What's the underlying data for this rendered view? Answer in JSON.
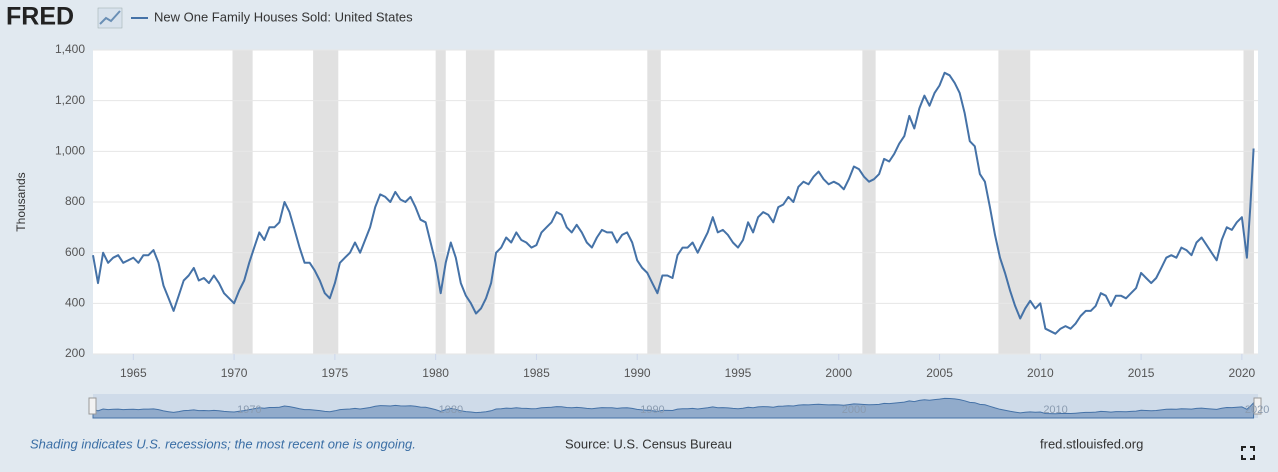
{
  "logo": "FRED",
  "chart_data": {
    "type": "line",
    "y_label": "Thousands",
    "grid": true,
    "xlim": [
      1963,
      2020.8
    ],
    "xticks": [
      1965,
      1970,
      1975,
      1980,
      1985,
      1990,
      1995,
      2000,
      2005,
      2010,
      2015,
      2020
    ],
    "ylim": [
      200,
      1400
    ],
    "yticks": [
      200,
      400,
      600,
      800,
      {
        "value": 1000,
        "label": "1,000"
      },
      {
        "value": 1200,
        "label": "1,200"
      },
      {
        "value": 1400,
        "label": "1,400"
      }
    ],
    "recessions": [
      [
        1969.92,
        1970.92
      ],
      [
        1973.92,
        1975.17
      ],
      [
        1980.0,
        1980.5
      ],
      [
        1981.5,
        1982.92
      ],
      [
        1990.5,
        1991.17
      ],
      [
        2001.17,
        2001.83
      ],
      [
        2007.92,
        2009.5
      ],
      [
        2020.08,
        2020.6
      ]
    ],
    "navigator_xticks": [
      1970,
      1980,
      1990,
      2000,
      2010,
      2020
    ],
    "x": [
      1963,
      1963.25,
      1963.5,
      1963.75,
      1964,
      1964.25,
      1964.5,
      1964.75,
      1965,
      1965.25,
      1965.5,
      1965.75,
      1966,
      1966.25,
      1966.5,
      1966.75,
      1967,
      1967.25,
      1967.5,
      1967.75,
      1968,
      1968.25,
      1968.5,
      1968.75,
      1969,
      1969.25,
      1969.5,
      1969.75,
      1970,
      1970.25,
      1970.5,
      1970.75,
      1971,
      1971.25,
      1971.5,
      1971.75,
      1972,
      1972.25,
      1972.5,
      1972.75,
      1973,
      1973.25,
      1973.5,
      1973.75,
      1974,
      1974.25,
      1974.5,
      1974.75,
      1975,
      1975.25,
      1975.5,
      1975.75,
      1976,
      1976.25,
      1976.5,
      1976.75,
      1977,
      1977.25,
      1977.5,
      1977.75,
      1978,
      1978.25,
      1978.5,
      1978.75,
      1979,
      1979.25,
      1979.5,
      1979.75,
      1980,
      1980.25,
      1980.5,
      1980.75,
      1981,
      1981.25,
      1981.5,
      1981.75,
      1982,
      1982.25,
      1982.5,
      1982.75,
      1983,
      1983.25,
      1983.5,
      1983.75,
      1984,
      1984.25,
      1984.5,
      1984.75,
      1985,
      1985.25,
      1985.5,
      1985.75,
      1986,
      1986.25,
      1986.5,
      1986.75,
      1987,
      1987.25,
      1987.5,
      1987.75,
      1988,
      1988.25,
      1988.5,
      1988.75,
      1989,
      1989.25,
      1989.5,
      1989.75,
      1990,
      1990.25,
      1990.5,
      1990.75,
      1991,
      1991.25,
      1991.5,
      1991.75,
      1992,
      1992.25,
      1992.5,
      1992.75,
      1993,
      1993.25,
      1993.5,
      1993.75,
      1994,
      1994.25,
      1994.5,
      1994.75,
      1995,
      1995.25,
      1995.5,
      1995.75,
      1996,
      1996.25,
      1996.5,
      1996.75,
      1997,
      1997.25,
      1997.5,
      1997.75,
      1998,
      1998.25,
      1998.5,
      1998.75,
      1999,
      1999.25,
      1999.5,
      1999.75,
      2000,
      2000.25,
      2000.5,
      2000.75,
      2001,
      2001.25,
      2001.5,
      2001.75,
      2002,
      2002.25,
      2002.5,
      2002.75,
      2003,
      2003.25,
      2003.5,
      2003.75,
      2004,
      2004.25,
      2004.5,
      2004.75,
      2005,
      2005.25,
      2005.5,
      2005.75,
      2006,
      2006.25,
      2006.5,
      2006.75,
      2007,
      2007.25,
      2007.5,
      2007.75,
      2008,
      2008.25,
      2008.5,
      2008.75,
      2009,
      2009.25,
      2009.5,
      2009.75,
      2010,
      2010.25,
      2010.5,
      2010.75,
      2011,
      2011.25,
      2011.5,
      2011.75,
      2012,
      2012.25,
      2012.5,
      2012.75,
      2013,
      2013.25,
      2013.5,
      2013.75,
      2014,
      2014.25,
      2014.5,
      2014.75,
      2015,
      2015.25,
      2015.5,
      2015.75,
      2016,
      2016.25,
      2016.5,
      2016.75,
      2017,
      2017.25,
      2017.5,
      2017.75,
      2018,
      2018.25,
      2018.5,
      2018.75,
      2019,
      2019.25,
      2019.5,
      2019.75,
      2020,
      2020.25,
      2020.42,
      2020.58
    ],
    "series": [
      {
        "name": "New One Family Houses Sold: United States",
        "color": "#4572a7",
        "values": [
          590,
          480,
          600,
          560,
          580,
          590,
          560,
          570,
          580,
          560,
          590,
          590,
          610,
          560,
          470,
          420,
          370,
          430,
          490,
          510,
          540,
          490,
          500,
          480,
          510,
          480,
          440,
          420,
          400,
          450,
          490,
          560,
          620,
          680,
          650,
          700,
          700,
          720,
          800,
          760,
          690,
          620,
          560,
          560,
          530,
          490,
          440,
          420,
          480,
          560,
          580,
          600,
          640,
          600,
          650,
          700,
          780,
          830,
          820,
          800,
          840,
          810,
          800,
          820,
          780,
          730,
          720,
          640,
          560,
          440,
          560,
          640,
          580,
          480,
          430,
          400,
          360,
          380,
          420,
          480,
          600,
          620,
          660,
          640,
          680,
          650,
          640,
          620,
          630,
          680,
          700,
          720,
          760,
          750,
          700,
          680,
          710,
          680,
          640,
          620,
          660,
          690,
          680,
          680,
          640,
          670,
          680,
          640,
          570,
          540,
          520,
          480,
          440,
          510,
          510,
          500,
          590,
          620,
          620,
          640,
          600,
          640,
          680,
          740,
          680,
          690,
          670,
          640,
          620,
          650,
          720,
          680,
          740,
          760,
          750,
          720,
          780,
          790,
          820,
          800,
          860,
          880,
          870,
          900,
          920,
          890,
          870,
          880,
          870,
          850,
          890,
          940,
          930,
          900,
          880,
          890,
          910,
          970,
          960,
          990,
          1030,
          1060,
          1140,
          1090,
          1170,
          1220,
          1180,
          1230,
          1260,
          1310,
          1300,
          1270,
          1230,
          1150,
          1040,
          1020,
          910,
          880,
          780,
          670,
          580,
          520,
          450,
          390,
          340,
          380,
          410,
          380,
          400,
          300,
          290,
          280,
          300,
          310,
          300,
          320,
          350,
          370,
          370,
          390,
          440,
          430,
          390,
          430,
          430,
          420,
          440,
          460,
          520,
          500,
          480,
          500,
          540,
          580,
          590,
          580,
          620,
          610,
          590,
          640,
          660,
          630,
          600,
          570,
          650,
          700,
          690,
          720,
          740,
          580,
          780,
          1011
        ]
      }
    ]
  },
  "footer": {
    "note": "Shading indicates U.S. recessions; the most recent one is ongoing.",
    "source": "Source: U.S. Census Bureau",
    "site": "fred.stlouisfed.org"
  }
}
